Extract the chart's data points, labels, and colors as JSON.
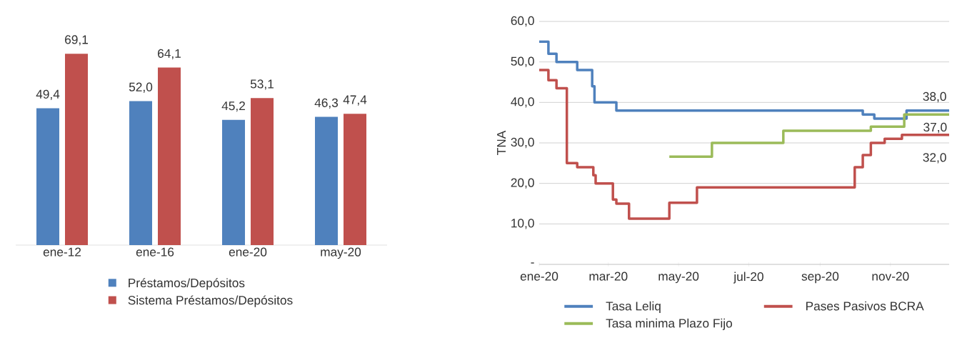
{
  "chart_data": [
    {
      "type": "bar",
      "categories": [
        "ene-12",
        "ene-16",
        "ene-20",
        "may-20"
      ],
      "legend": "bottom",
      "series": [
        {
          "name": "Préstamos/Depósitos",
          "color": "#4f81bd",
          "values": [
            49.4,
            52.0,
            45.2,
            46.3
          ],
          "value_labels": [
            "49,4",
            "52,0",
            "45,2",
            "46,3"
          ]
        },
        {
          "name": "Sistema Préstamos/Depósitos",
          "color": "#c0504d",
          "values": [
            69.1,
            64.1,
            53.1,
            47.4
          ],
          "value_labels": [
            "69,1",
            "64,1",
            "53,1",
            "47,4"
          ]
        }
      ]
    },
    {
      "type": "step",
      "ylabel": "TNA",
      "grid": "y",
      "legend": "bottom",
      "xlim": [
        "2020-01-01",
        "2020-12-22"
      ],
      "ylim": [
        0,
        60
      ],
      "xticks": [
        {
          "value": "2020-01-01",
          "label": "ene-20"
        },
        {
          "value": "2020-03-01",
          "label": "mar-20"
        },
        {
          "value": "2020-05-01",
          "label": "may-20"
        },
        {
          "value": "2020-07-01",
          "label": "jul-20"
        },
        {
          "value": "2020-09-01",
          "label": "sep-20"
        },
        {
          "value": "2020-11-01",
          "label": "nov-20"
        }
      ],
      "yticks": [
        {
          "value": 0,
          "label": "-"
        },
        {
          "value": 10,
          "label": "10,0"
        },
        {
          "value": 20,
          "label": "20,0"
        },
        {
          "value": 30,
          "label": "30,0"
        },
        {
          "value": 40,
          "label": "40,0"
        },
        {
          "value": 50,
          "label": "50,0"
        },
        {
          "value": 60,
          "label": "60,0"
        }
      ],
      "series": [
        {
          "name": "Tasa Leliq",
          "color": "#4f81bd",
          "x": [
            "2020-01-01",
            "2020-01-09",
            "2020-01-16",
            "2020-02-03",
            "2020-02-16",
            "2020-02-18",
            "2020-03-08",
            "2020-10-08",
            "2020-10-18",
            "2020-11-15",
            "2020-12-22"
          ],
          "values": [
            55,
            52,
            50,
            48,
            44,
            40,
            38,
            37,
            36,
            38,
            38
          ]
        },
        {
          "name": "Pases Pasivos BCRA",
          "color": "#c0504d",
          "x": [
            "2020-01-01",
            "2020-01-09",
            "2020-01-16",
            "2020-01-25",
            "2020-02-03",
            "2020-02-17",
            "2020-02-19",
            "2020-03-05",
            "2020-03-08",
            "2020-03-19",
            "2020-04-23",
            "2020-05-17",
            "2020-10-01",
            "2020-10-08",
            "2020-10-15",
            "2020-10-27",
            "2020-11-11",
            "2020-12-22"
          ],
          "values": [
            48,
            45.5,
            43.5,
            25,
            24,
            22,
            20,
            16,
            15,
            11.3,
            15.2,
            19,
            24,
            27,
            30,
            31,
            32,
            32
          ]
        },
        {
          "name": "Tasa minima Plazo Fijo",
          "color": "#9bbb59",
          "x": [
            "2020-04-23",
            "2020-05-30",
            "2020-07-31",
            "2020-10-15",
            "2020-11-13",
            "2020-12-22"
          ],
          "values": [
            26.6,
            30,
            33,
            34,
            37,
            37
          ]
        }
      ],
      "annotations": [
        {
          "text": "38,0",
          "x": "2020-12-22",
          "y": 38
        },
        {
          "text": "37,0",
          "x": "2020-12-22",
          "y": 37
        },
        {
          "text": "32,0",
          "x": "2020-12-22",
          "y": 32
        }
      ]
    }
  ]
}
